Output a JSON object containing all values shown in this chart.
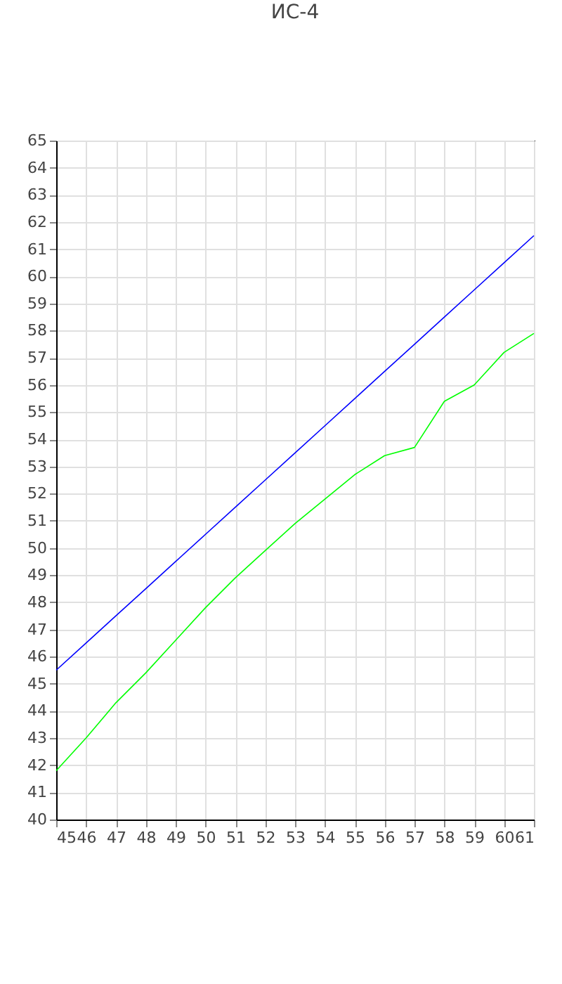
{
  "chart_data": {
    "type": "line",
    "title": "ИС-4",
    "x": [
      45,
      46,
      47,
      48,
      49,
      50,
      51,
      52,
      53,
      54,
      55,
      56,
      57,
      58,
      59,
      60,
      61
    ],
    "series": [
      {
        "color": "#0000ff",
        "values": [
          45.5,
          46.5,
          47.5,
          48.5,
          49.5,
          50.5,
          51.5,
          52.5,
          53.5,
          54.5,
          55.5,
          56.5,
          57.5,
          58.5,
          59.5,
          60.5,
          61.5
        ]
      },
      {
        "color": "#00ff00",
        "values": [
          41.8,
          43.0,
          44.3,
          45.4,
          46.6,
          47.8,
          48.9,
          49.9,
          50.9,
          51.8,
          52.7,
          53.4,
          53.7,
          55.4,
          56.0,
          57.2,
          57.9
        ]
      }
    ],
    "xlim": [
      45,
      61
    ],
    "xticks": [
      45,
      46,
      47,
      48,
      49,
      50,
      51,
      52,
      53,
      54,
      55,
      56,
      57,
      58,
      59,
      60,
      61
    ],
    "ylim": [
      40,
      65
    ],
    "yticks": [
      40,
      41,
      42,
      43,
      44,
      45,
      46,
      47,
      48,
      49,
      50,
      51,
      52,
      53,
      54,
      55,
      56,
      57,
      58,
      59,
      60,
      61,
      62,
      63,
      64,
      65
    ],
    "grid": true,
    "legend": false,
    "marker": "none",
    "line_style": "solid"
  }
}
